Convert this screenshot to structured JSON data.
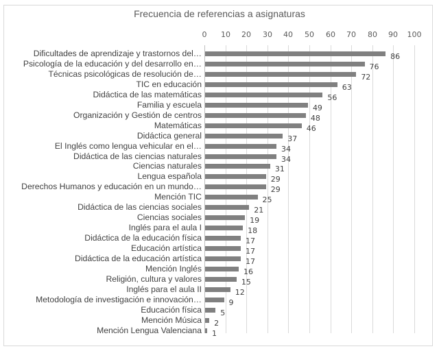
{
  "chart_data": {
    "type": "bar",
    "orientation": "horizontal",
    "title": "Frecuencia de referencias a asignaturas",
    "xlabel": "",
    "ylabel": "",
    "xlim": [
      0,
      100
    ],
    "x_ticks": [
      0,
      10,
      20,
      30,
      40,
      50,
      60,
      70,
      80,
      90,
      100
    ],
    "x_axis_position": "top",
    "grid": true,
    "legend": null,
    "bar_color": "#808080",
    "categories": [
      "Dificultades de aprendizaje y trastornos del…",
      "Psicología de la educación y del desarrollo en…",
      "Técnicas psicológicas de resolución de…",
      "TIC en educación",
      "Didáctica de las matemáticas",
      "Familia y escuela",
      "Organización y Gestión de centros",
      "Matemáticas",
      "Didáctica general",
      "El Inglés como lengua vehicular en el…",
      "Didáctica de las ciencias naturales",
      "Ciencias naturales",
      "Lengua española",
      "Derechos Humanos y educación en un mundo…",
      "Mención TIC",
      "Didáctica de las ciencias sociales",
      "Ciencias sociales",
      "Inglés para el aula I",
      "Didáctica de la educación física",
      "Educación artística",
      "Didáctica de la educación artística",
      "Mención Inglés",
      "Religión, cultura y valores",
      "Inglés para el aula II",
      "Metodología de investigación e innovación…",
      "Educación física",
      "Mención Música",
      "Mención Lengua Valenciana"
    ],
    "values": [
      86,
      76,
      72,
      63,
      56,
      49,
      48,
      46,
      37,
      34,
      34,
      31,
      29,
      29,
      25,
      21,
      19,
      18,
      17,
      17,
      17,
      16,
      15,
      12,
      9,
      5,
      2,
      1
    ]
  }
}
